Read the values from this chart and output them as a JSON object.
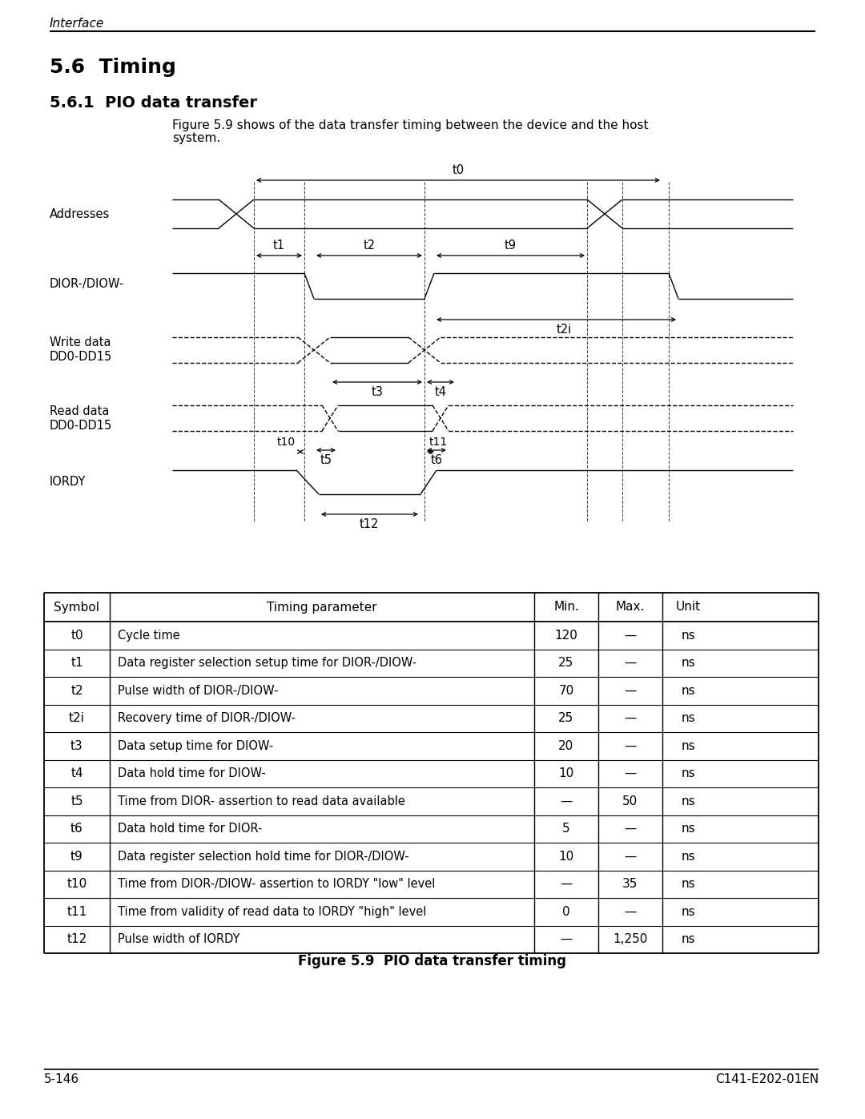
{
  "page_header_italic": "Interface",
  "section_title": "5.6  Timing",
  "subsection_title": "5.6.1  PIO data transfer",
  "description_line1": "Figure 5.9 shows of the data transfer timing between the device and the host",
  "description_line2": "system.",
  "figure_caption": "Figure 5.9  PIO data transfer timing",
  "footer_left": "5-146",
  "footer_right": "C141-E202-01EN",
  "bg_color": "#ffffff",
  "line_color": "#000000",
  "table_headers": [
    "Symbol",
    "Timing parameter",
    "Min.",
    "Max.",
    "Unit"
  ],
  "table_rows": [
    [
      "t0",
      "Cycle time",
      "120",
      "—",
      "ns"
    ],
    [
      "t1",
      "Data register selection setup time for DIOR-/DIOW-",
      "25",
      "—",
      "ns"
    ],
    [
      "t2",
      "Pulse width of DIOR-/DIOW-",
      "70",
      "—",
      "ns"
    ],
    [
      "t2i",
      "Recovery time of DIOR-/DIOW-",
      "25",
      "—",
      "ns"
    ],
    [
      "t3",
      "Data setup time for DIOW-",
      "20",
      "—",
      "ns"
    ],
    [
      "t4",
      "Data hold time for DIOW-",
      "10",
      "—",
      "ns"
    ],
    [
      "t5",
      "Time from DIOR- assertion to read data available",
      "—",
      "50",
      "ns"
    ],
    [
      "t6",
      "Data hold time for DIOR-",
      "5",
      "—",
      "ns"
    ],
    [
      "t9",
      "Data register selection hold time for DIOR-/DIOW-",
      "10",
      "—",
      "ns"
    ],
    [
      "t10",
      "Time from DIOR-/DIOW- assertion to IORDY \"low\" level",
      "—",
      "35",
      "ns"
    ],
    [
      "t11",
      "Time from validity of read data to IORDY \"high\" level",
      "0",
      "—",
      "ns"
    ],
    [
      "t12",
      "Pulse width of IORDY",
      "—",
      "1,250",
      "ns"
    ]
  ]
}
